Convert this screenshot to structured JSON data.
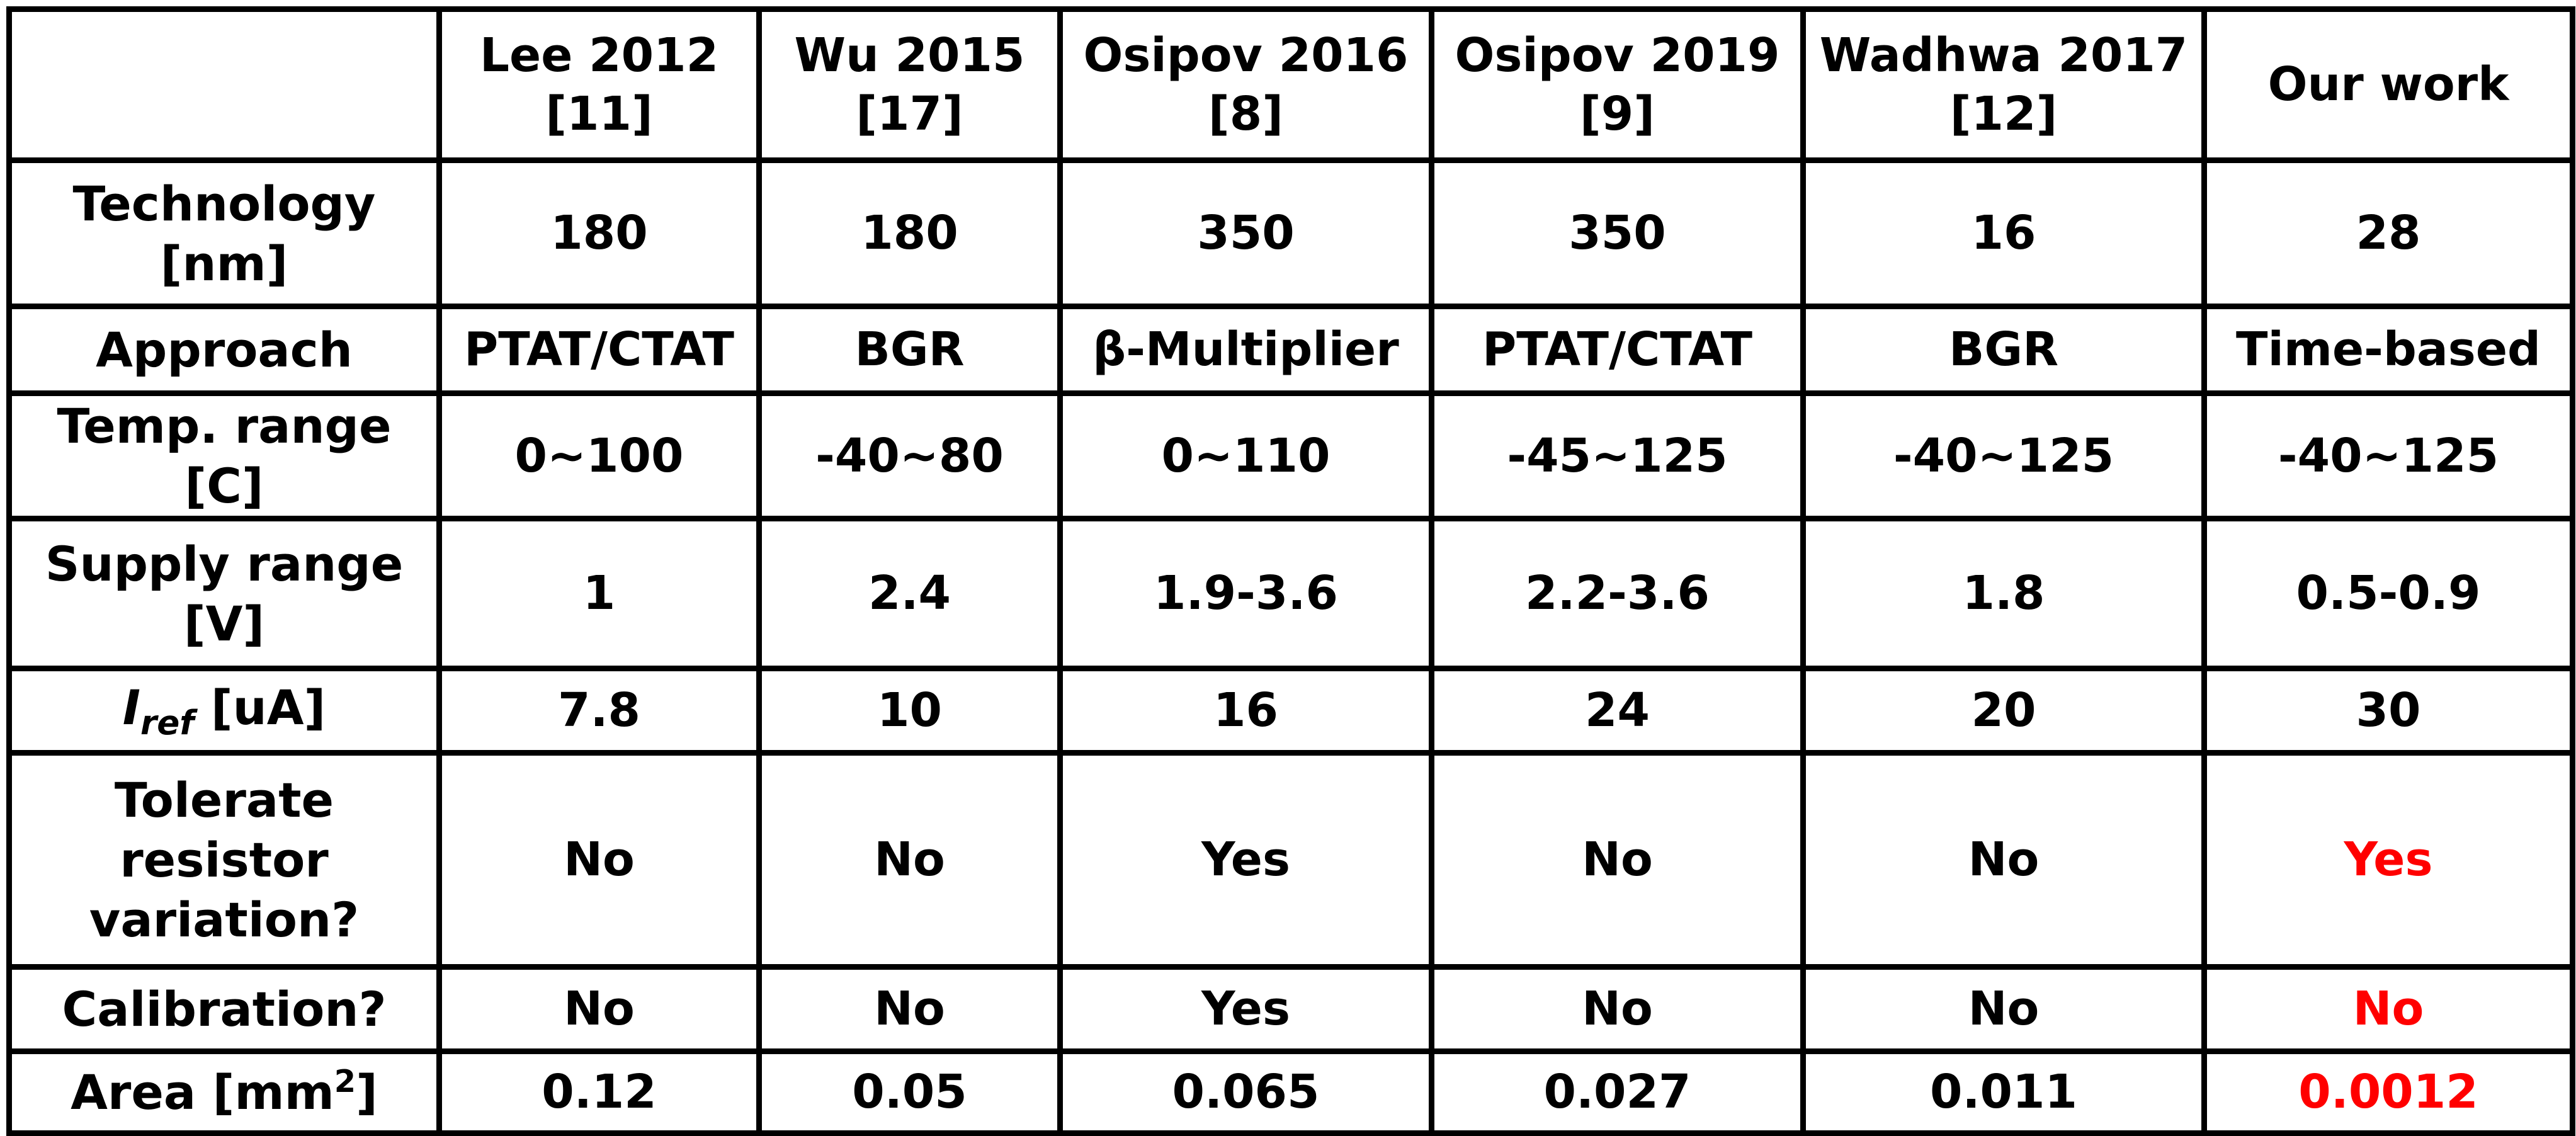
{
  "header": {
    "corner": "",
    "columns": [
      {
        "line1": "Lee 2012",
        "line2": "[11]"
      },
      {
        "line1": "Wu 2015",
        "line2": "[17]"
      },
      {
        "line1": "Osipov  2016",
        "line2": "[8]"
      },
      {
        "line1": "Osipov  2019",
        "line2": "[9]"
      },
      {
        "line1": "Wadhwa 2017",
        "line2": "[12]"
      },
      {
        "line1": "Our work",
        "line2": ""
      }
    ]
  },
  "rows": {
    "technology": {
      "label_line1": "Technology",
      "label_line2": "[nm]",
      "values": [
        "180",
        "180",
        "350",
        "350",
        "16",
        "28"
      ]
    },
    "approach": {
      "label": "Approach",
      "values": [
        "PTAT/CTAT",
        "BGR",
        "β-Multiplier",
        "PTAT/CTAT",
        "BGR",
        "Time-based"
      ]
    },
    "temp_range": {
      "label": "Temp. range [C]",
      "values": [
        "0~100",
        "-40~80",
        "0~110",
        "-45~125",
        "-40~125",
        "-40~125"
      ]
    },
    "supply_range": {
      "label_line1": "Supply range",
      "label_line2": "[V]",
      "values": [
        "1",
        "2.4",
        "1.9-3.6",
        "2.2-3.6",
        "1.8",
        "0.5-0.9"
      ]
    },
    "iref": {
      "label_symbol": "I",
      "label_subscript": "ref",
      "label_unit": " [uA]",
      "values": [
        "7.8",
        "10",
        "16",
        "24",
        "20",
        "30"
      ]
    },
    "tolerate": {
      "label_line1": "Tolerate",
      "label_line2": "resistor",
      "label_line3": "variation?",
      "values": [
        "No",
        "No",
        "Yes",
        "No",
        "No",
        "Yes"
      ]
    },
    "calibration": {
      "label": "Calibration?",
      "values": [
        "No",
        "No",
        "Yes",
        "No",
        "No",
        "No"
      ]
    },
    "area": {
      "label_prefix": "Area [mm",
      "label_superscript": "2",
      "label_suffix": "]",
      "values": [
        "0.12",
        "0.05",
        "0.065",
        "0.027",
        "0.011",
        "0.0012"
      ]
    }
  },
  "colors": {
    "highlight": "#ff0000",
    "border": "#000000",
    "text": "#000000"
  }
}
